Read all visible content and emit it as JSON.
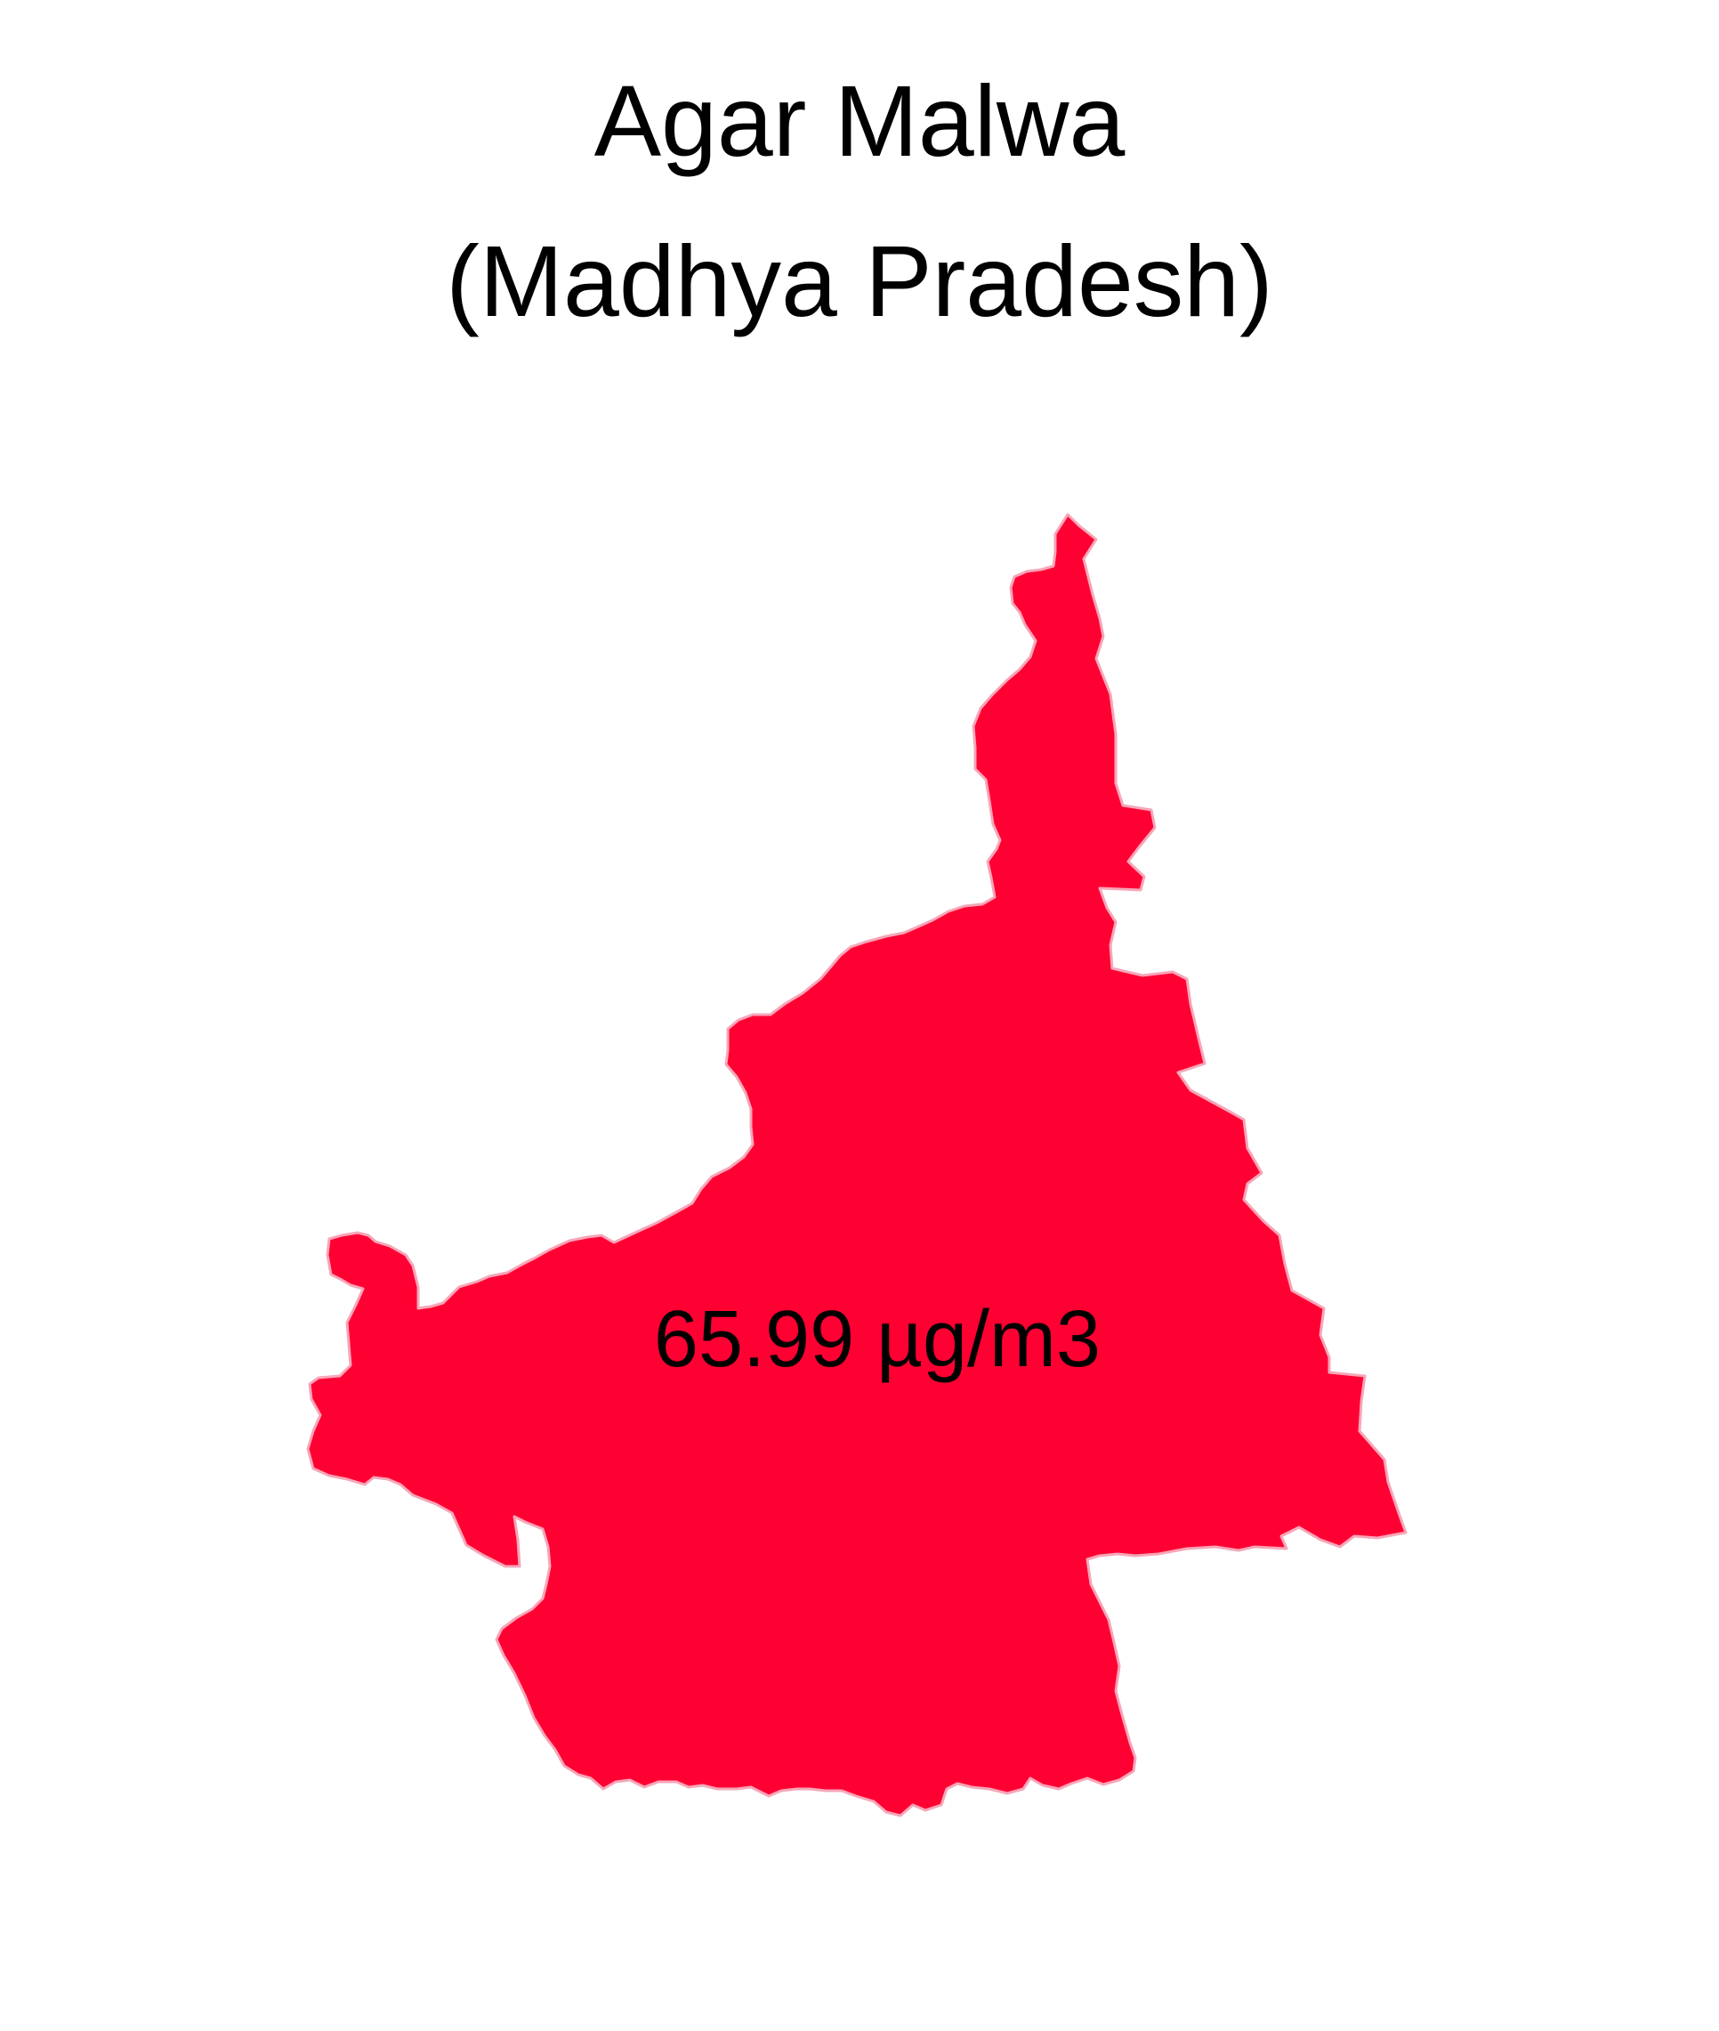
{
  "map": {
    "title_line1": "Agar Malwa",
    "title_line2": "(Madhya Pradesh)",
    "region_name": "Agar Malwa",
    "value_label": "65.99 µg/m3",
    "fill_color": "#FF0033",
    "border_color": "#F6A6B8"
  }
}
